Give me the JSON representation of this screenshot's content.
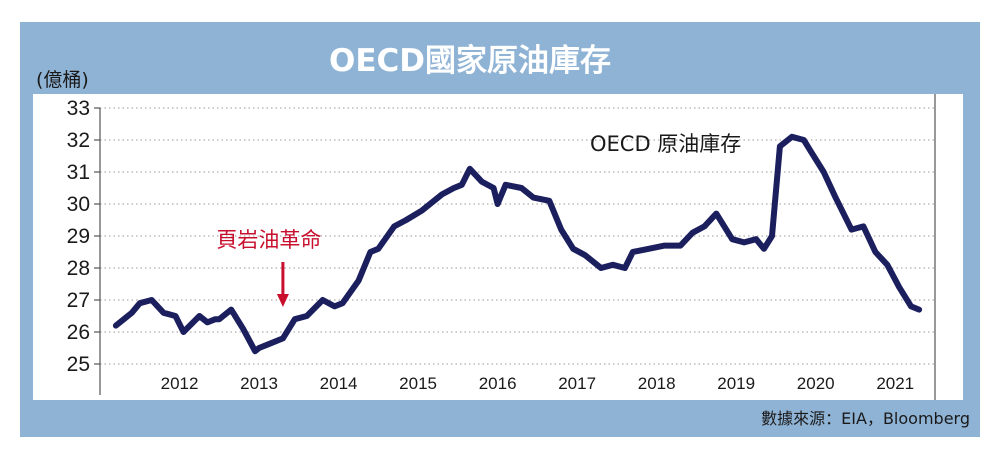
{
  "chart_data": {
    "type": "line",
    "title": "OECD國家原油庫存",
    "unit_label": "(億桶)",
    "xlabel": "",
    "ylabel": "",
    "ylim": [
      25,
      33
    ],
    "yticks": [
      25,
      26,
      27,
      28,
      29,
      30,
      31,
      32,
      33
    ],
    "xticks": [
      "2012",
      "2013",
      "2014",
      "2015",
      "2016",
      "2017",
      "2018",
      "2019",
      "2020",
      "2021"
    ],
    "xlim": [
      2011.5,
      2022.0
    ],
    "grid": true,
    "series": [
      {
        "name": "OECD 原油庫存",
        "color": "#1b1f5e",
        "x": [
          2011.7,
          2011.9,
          2012.0,
          2012.15,
          2012.3,
          2012.45,
          2012.55,
          2012.75,
          2012.85,
          2012.95,
          2013.0,
          2013.15,
          2013.3,
          2013.45,
          2013.5,
          2013.6,
          2013.8,
          2013.95,
          2014.1,
          2014.3,
          2014.45,
          2014.55,
          2014.75,
          2014.9,
          2015.0,
          2015.2,
          2015.35,
          2015.55,
          2015.8,
          2015.95,
          2016.05,
          2016.15,
          2016.3,
          2016.45,
          2016.5,
          2016.6,
          2016.8,
          2016.95,
          2017.15,
          2017.3,
          2017.45,
          2017.6,
          2017.8,
          2017.95,
          2018.1,
          2018.2,
          2018.4,
          2018.6,
          2018.8,
          2018.95,
          2019.1,
          2019.25,
          2019.45,
          2019.6,
          2019.75,
          2019.85,
          2019.95,
          2020.05,
          2020.2,
          2020.35,
          2020.45,
          2020.6,
          2020.75,
          2020.95,
          2021.1,
          2021.25,
          2021.4,
          2021.55,
          2021.7,
          2021.8
        ],
        "values": [
          26.2,
          26.6,
          26.9,
          27.0,
          26.6,
          26.5,
          26.0,
          26.5,
          26.3,
          26.4,
          26.4,
          26.7,
          26.1,
          25.4,
          25.5,
          25.6,
          25.8,
          26.4,
          26.5,
          27.0,
          26.8,
          26.9,
          27.6,
          28.5,
          28.6,
          29.3,
          29.5,
          29.8,
          30.3,
          30.5,
          30.6,
          31.1,
          30.7,
          30.5,
          30.0,
          30.6,
          30.5,
          30.2,
          30.1,
          29.2,
          28.6,
          28.4,
          28.0,
          28.1,
          28.0,
          28.5,
          28.6,
          28.7,
          28.7,
          29.1,
          29.3,
          29.7,
          28.9,
          28.8,
          28.9,
          28.6,
          29.0,
          31.8,
          32.1,
          32.0,
          31.6,
          31.0,
          30.2,
          29.2,
          29.3,
          28.5,
          28.1,
          27.4,
          26.8,
          26.7
        ]
      }
    ],
    "annotations": [
      {
        "text": "頁岩油革命",
        "x": 2013.8
      }
    ],
    "source": "數據來源：EIA，Bloomberg"
  }
}
